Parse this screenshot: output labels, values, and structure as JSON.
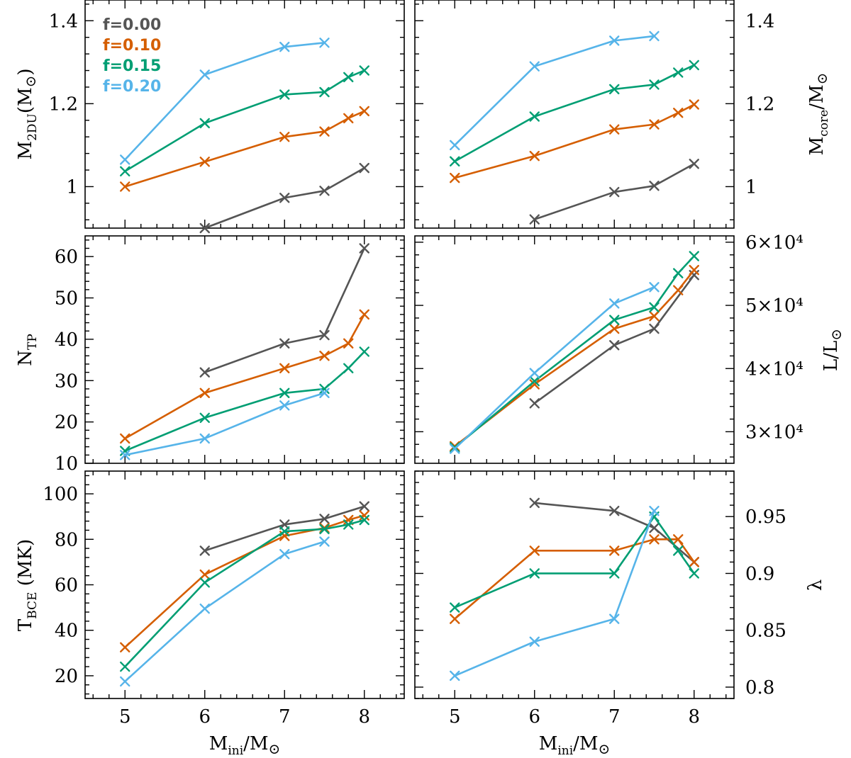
{
  "colors": {
    "f000": "#555555",
    "f010": "#d55e00",
    "f015": "#009e73",
    "f020": "#56b4e9"
  },
  "legend": [
    {
      "label": "f=0.00",
      "color": "#555555"
    },
    {
      "label": "f=0.10",
      "color": "#d55e00"
    },
    {
      "label": "f=0.15",
      "color": "#009e73"
    },
    {
      "label": "f=0.20",
      "color": "#56b4e9"
    }
  ],
  "xlabel": "M_ini/M_sun",
  "chart_data": [
    {
      "type": "line",
      "id": "m2du",
      "ylabel": "M_2DU(M_sun)",
      "xlim": [
        4.5,
        8.5
      ],
      "ylim": [
        0.9,
        1.45
      ],
      "yticks": [
        1.0,
        1.2,
        1.4
      ],
      "ytick_labels": [
        "1",
        "1.2",
        "1.4"
      ],
      "series": [
        {
          "name": "f=0.00",
          "x": [
            6,
            7,
            7.5,
            8
          ],
          "values": [
            0.9,
            0.973,
            0.99,
            1.045
          ]
        },
        {
          "name": "f=0.10",
          "x": [
            5,
            6,
            7,
            7.5,
            7.8,
            8
          ],
          "values": [
            1.0,
            1.06,
            1.12,
            1.133,
            1.165,
            1.182
          ]
        },
        {
          "name": "f=0.15",
          "x": [
            5,
            6,
            7,
            7.5,
            7.8,
            8
          ],
          "values": [
            1.037,
            1.153,
            1.222,
            1.228,
            1.264,
            1.28
          ]
        },
        {
          "name": "f=0.20",
          "x": [
            5,
            6,
            7,
            7.5
          ],
          "values": [
            1.065,
            1.27,
            1.337,
            1.347
          ]
        }
      ]
    },
    {
      "type": "line",
      "id": "mcore",
      "ylabel": "M_core/M_sun",
      "xlim": [
        4.5,
        8.5
      ],
      "ylim": [
        0.9,
        1.45
      ],
      "yticks": [
        1.0,
        1.2,
        1.4
      ],
      "ytick_labels": [
        "1",
        "1.2",
        "1.4"
      ],
      "series": [
        {
          "name": "f=0.00",
          "x": [
            6,
            7,
            7.5,
            8
          ],
          "values": [
            0.921,
            0.987,
            1.002,
            1.055
          ]
        },
        {
          "name": "f=0.10",
          "x": [
            5,
            6,
            7,
            7.5,
            7.8,
            8
          ],
          "values": [
            1.021,
            1.074,
            1.138,
            1.15,
            1.178,
            1.198
          ]
        },
        {
          "name": "f=0.15",
          "x": [
            5,
            6,
            7,
            7.5,
            7.8,
            8
          ],
          "values": [
            1.061,
            1.169,
            1.235,
            1.246,
            1.275,
            1.293
          ]
        },
        {
          "name": "f=0.20",
          "x": [
            5,
            6,
            7,
            7.5
          ],
          "values": [
            1.1,
            1.29,
            1.352,
            1.363
          ]
        }
      ]
    },
    {
      "type": "line",
      "id": "ntp",
      "ylabel": "N_TP",
      "xlim": [
        4.5,
        8.5
      ],
      "ylim": [
        10,
        65
      ],
      "yticks": [
        10,
        20,
        30,
        40,
        50,
        60
      ],
      "ytick_labels": [
        "10",
        "20",
        "30",
        "40",
        "50",
        "60"
      ],
      "series": [
        {
          "name": "f=0.00",
          "x": [
            6,
            7,
            7.5,
            8
          ],
          "values": [
            32,
            39,
            41,
            62
          ]
        },
        {
          "name": "f=0.10",
          "x": [
            5,
            6,
            7,
            7.5,
            7.8,
            8
          ],
          "values": [
            16,
            27,
            33,
            36,
            39,
            46
          ]
        },
        {
          "name": "f=0.15",
          "x": [
            5,
            6,
            7,
            7.5,
            7.8,
            8
          ],
          "values": [
            13,
            21,
            27,
            28,
            33,
            37
          ]
        },
        {
          "name": "f=0.20",
          "x": [
            5,
            6,
            7,
            7.5
          ],
          "values": [
            12,
            16,
            24,
            27
          ]
        }
      ]
    },
    {
      "type": "line",
      "id": "lum",
      "ylabel": "L/L_sun",
      "xlim": [
        4.5,
        8.5
      ],
      "ylim": [
        25000,
        61000
      ],
      "yticks": [
        30000,
        40000,
        50000,
        60000
      ],
      "ytick_labels": [
        "3×10⁴",
        "4×10⁴",
        "5×10⁴",
        "6×10⁴"
      ],
      "series": [
        {
          "name": "f=0.00",
          "x": [
            6,
            7,
            7.5,
            8
          ],
          "values": [
            34500,
            43700,
            46300,
            54800
          ]
        },
        {
          "name": "f=0.10",
          "x": [
            5,
            6,
            7,
            7.5,
            7.8,
            8
          ],
          "values": [
            27700,
            37500,
            46300,
            48300,
            52400,
            55600
          ]
        },
        {
          "name": "f=0.15",
          "x": [
            5,
            6,
            7,
            7.5,
            7.8,
            8
          ],
          "values": [
            27500,
            38000,
            47700,
            49700,
            55100,
            57800
          ]
        },
        {
          "name": "f=0.20",
          "x": [
            5,
            6,
            7,
            7.5
          ],
          "values": [
            27300,
            39300,
            50300,
            52900
          ]
        }
      ]
    },
    {
      "type": "line",
      "id": "tbce",
      "ylabel": "T_BCE (MK)",
      "xlim": [
        4.5,
        8.5
      ],
      "ylim": [
        10,
        110
      ],
      "yticks": [
        20,
        40,
        60,
        80,
        100
      ],
      "ytick_labels": [
        "20",
        "40",
        "60",
        "80",
        "100"
      ],
      "series": [
        {
          "name": "f=0.00",
          "x": [
            6,
            7,
            7.5,
            8
          ],
          "values": [
            75,
            86.5,
            89,
            94.5
          ]
        },
        {
          "name": "f=0.10",
          "x": [
            5,
            6,
            7,
            7.5,
            7.8,
            8
          ],
          "values": [
            32.5,
            64.5,
            81.5,
            85,
            88.5,
            90.5
          ]
        },
        {
          "name": "f=0.15",
          "x": [
            5,
            6,
            7,
            7.5,
            7.8,
            8
          ],
          "values": [
            24,
            61,
            83.5,
            84.5,
            86.5,
            88.5
          ]
        },
        {
          "name": "f=0.20",
          "x": [
            5,
            6,
            7,
            7.5
          ],
          "values": [
            17.5,
            49.5,
            73.5,
            79
          ]
        }
      ]
    },
    {
      "type": "line",
      "id": "lambda",
      "ylabel": "λ",
      "xlim": [
        4.5,
        8.5
      ],
      "ylim": [
        0.79,
        0.99
      ],
      "yticks": [
        0.8,
        0.85,
        0.9,
        0.95
      ],
      "ytick_labels": [
        "0.8",
        "0.85",
        "0.9",
        "0.95"
      ],
      "series": [
        {
          "name": "f=0.00",
          "x": [
            6,
            7,
            7.5,
            8
          ],
          "values": [
            0.962,
            0.955,
            0.94,
            0.91
          ]
        },
        {
          "name": "f=0.10",
          "x": [
            5,
            6,
            7,
            7.5,
            7.8,
            8
          ],
          "values": [
            0.86,
            0.92,
            0.92,
            0.93,
            0.93,
            0.91
          ]
        },
        {
          "name": "f=0.15",
          "x": [
            5,
            6,
            7,
            7.5,
            7.8,
            8
          ],
          "values": [
            0.87,
            0.9,
            0.9,
            0.95,
            0.92,
            0.9
          ]
        },
        {
          "name": "f=0.20",
          "x": [
            5,
            6,
            7,
            7.5
          ],
          "values": [
            0.81,
            0.84,
            0.86,
            0.955
          ]
        }
      ]
    }
  ],
  "xticks": [
    5,
    6,
    7,
    8
  ],
  "xtick_labels": [
    "5",
    "6",
    "7",
    "8"
  ]
}
